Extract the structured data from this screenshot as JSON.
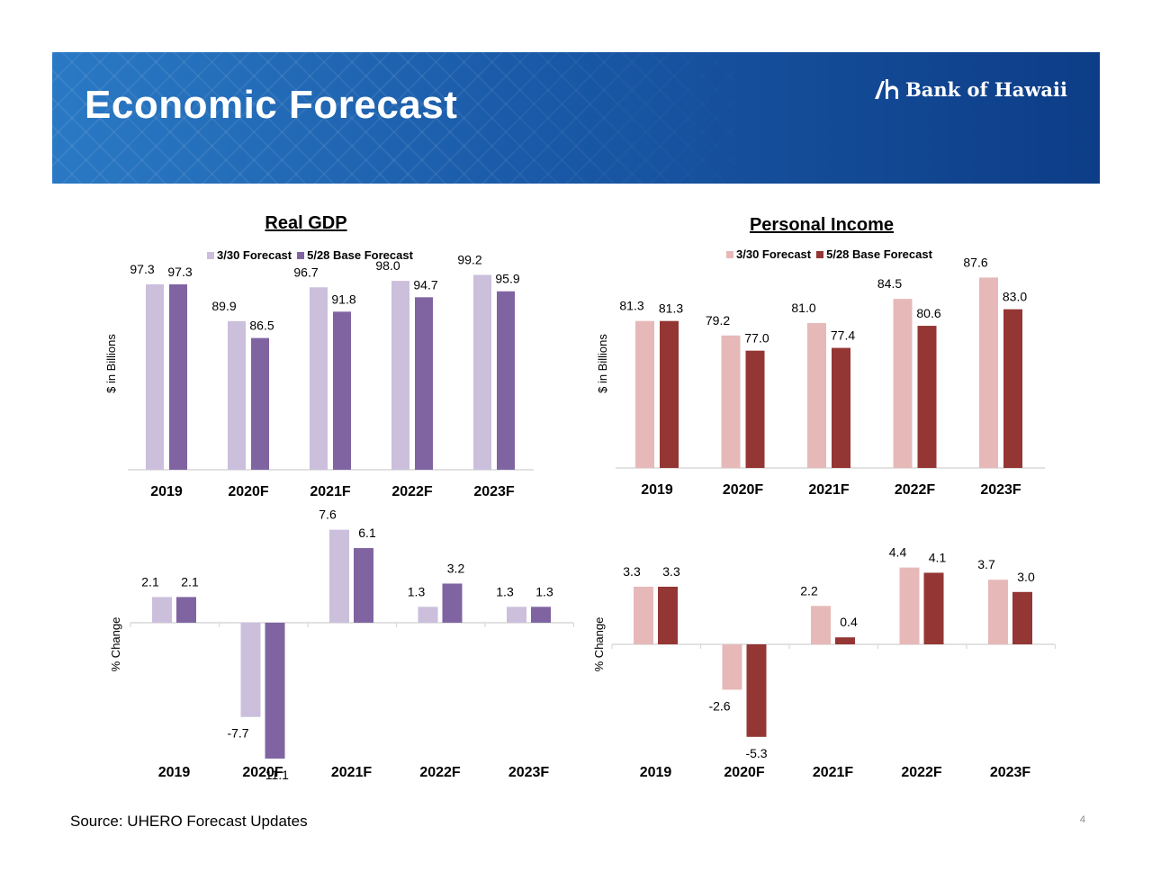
{
  "header": {
    "title": "Economic Forecast",
    "logo_text": "Bank of Hawaii"
  },
  "colors": {
    "gdp_forecast_330": "#cbbfdc",
    "gdp_forecast_528": "#8064a2",
    "pi_forecast_330": "#e6b9b8",
    "pi_forecast_528": "#943634"
  },
  "footer": {
    "source": "Source: UHERO Forecast Updates",
    "page_number": "4"
  },
  "chart_data": [
    {
      "id": "gdp-level",
      "type": "bar",
      "title": "Real GDP",
      "ylabel": "$ in Billions",
      "xlabel": "",
      "categories": [
        "2019",
        "2020F",
        "2021F",
        "2022F",
        "2023F"
      ],
      "series": [
        {
          "name": "3/30 Forecast",
          "values": [
            97.3,
            89.9,
            96.7,
            98.0,
            99.2
          ]
        },
        {
          "name": "5/28 Base Forecast",
          "values": [
            97.3,
            86.5,
            91.8,
            94.7,
            95.9
          ]
        }
      ],
      "ylim": [
        60,
        102
      ],
      "legend": "top-center",
      "grid": false
    },
    {
      "id": "pi-level",
      "type": "bar",
      "title": "Personal Income",
      "ylabel": "$ in Billions",
      "xlabel": "",
      "categories": [
        "2019",
        "2020F",
        "2021F",
        "2022F",
        "2023F"
      ],
      "series": [
        {
          "name": "3/30 Forecast",
          "values": [
            81.3,
            79.2,
            81.0,
            84.5,
            87.6
          ]
        },
        {
          "name": "5/28 Base Forecast",
          "values": [
            81.3,
            77.0,
            77.4,
            80.6,
            83.0
          ]
        }
      ],
      "ylim": [
        60,
        90
      ],
      "legend": "top-center",
      "grid": false
    },
    {
      "id": "gdp-change",
      "type": "bar",
      "title": "",
      "ylabel": "% Change",
      "xlabel": "",
      "categories": [
        "2019",
        "2020F",
        "2021F",
        "2022F",
        "2023F"
      ],
      "series": [
        {
          "name": "3/30 Forecast",
          "values": [
            2.1,
            -7.7,
            7.6,
            1.3,
            1.3
          ]
        },
        {
          "name": "5/28 Base Forecast",
          "values": [
            2.1,
            -11.1,
            6.1,
            3.2,
            1.3
          ]
        }
      ],
      "ylim": [
        -12,
        8
      ],
      "grid": false
    },
    {
      "id": "pi-change",
      "type": "bar",
      "title": "",
      "ylabel": "% Change",
      "xlabel": "",
      "categories": [
        "2019",
        "2020F",
        "2021F",
        "2022F",
        "2023F"
      ],
      "series": [
        {
          "name": "3/30 Forecast",
          "values": [
            3.3,
            -2.6,
            2.2,
            4.4,
            3.7
          ]
        },
        {
          "name": "5/28 Base Forecast",
          "values": [
            3.3,
            -5.3,
            0.4,
            4.1,
            3.0
          ]
        }
      ],
      "ylim": [
        -6,
        5
      ],
      "grid": false
    }
  ]
}
